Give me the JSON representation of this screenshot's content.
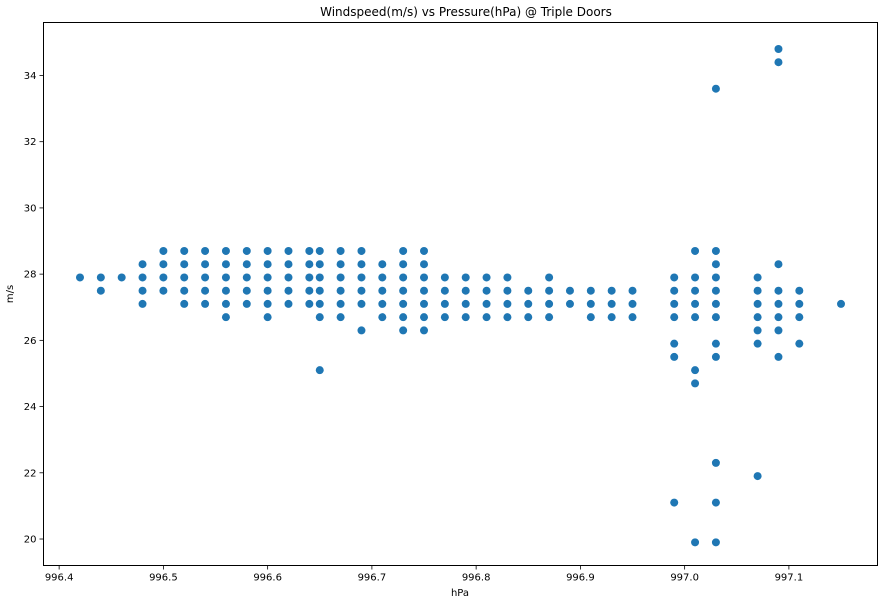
{
  "chart_data": {
    "type": "scatter",
    "title": "Windspeed(m/s) vs Pressure(hPa) @ Triple Doors",
    "xlabel": "hPa",
    "ylabel": "m/s",
    "xlim": [
      996.385,
      997.185
    ],
    "ylim": [
      19.2,
      35.6
    ],
    "xticks": [
      996.4,
      996.5,
      996.6,
      996.7,
      996.8,
      996.9,
      997.0,
      997.1
    ],
    "xtick_labels": [
      "996.4",
      "996.5",
      "996.6",
      "996.7",
      "996.8",
      "996.9",
      "997.0",
      "997.1"
    ],
    "yticks": [
      20,
      22,
      24,
      26,
      28,
      30,
      32,
      34
    ],
    "ytick_labels": [
      "20",
      "22",
      "24",
      "26",
      "28",
      "30",
      "32",
      "34"
    ],
    "grid": false,
    "marker_color": "#1f77b4",
    "columns": [
      {
        "x": 996.42,
        "y": [
          27.9
        ]
      },
      {
        "x": 996.44,
        "y": [
          27.5,
          27.9
        ]
      },
      {
        "x": 996.46,
        "y": [
          27.9
        ]
      },
      {
        "x": 996.48,
        "y": [
          27.1,
          27.5,
          27.9,
          28.3
        ]
      },
      {
        "x": 996.5,
        "y": [
          27.5,
          27.9,
          28.3,
          28.7
        ]
      },
      {
        "x": 996.52,
        "y": [
          27.1,
          27.5,
          27.9,
          28.3,
          28.7
        ]
      },
      {
        "x": 996.54,
        "y": [
          27.1,
          27.5,
          27.9,
          28.3,
          28.7
        ]
      },
      {
        "x": 996.56,
        "y": [
          26.7,
          27.1,
          27.5,
          27.9,
          28.3,
          28.7
        ]
      },
      {
        "x": 996.58,
        "y": [
          27.1,
          27.5,
          27.9,
          28.3,
          28.7
        ]
      },
      {
        "x": 996.6,
        "y": [
          26.7,
          27.1,
          27.5,
          27.9,
          28.3,
          28.7
        ]
      },
      {
        "x": 996.62,
        "y": [
          27.1,
          27.5,
          27.9,
          28.3,
          28.7
        ]
      },
      {
        "x": 996.64,
        "y": [
          27.1,
          27.5,
          27.9,
          28.3,
          28.7
        ]
      },
      {
        "x": 996.65,
        "y": [
          25.1,
          26.7,
          27.1,
          27.5,
          27.9,
          28.3,
          28.7
        ]
      },
      {
        "x": 996.67,
        "y": [
          26.7,
          27.1,
          27.5,
          27.9,
          28.3,
          28.7
        ]
      },
      {
        "x": 996.69,
        "y": [
          26.3,
          27.1,
          27.5,
          27.9,
          28.3,
          28.7
        ]
      },
      {
        "x": 996.71,
        "y": [
          26.7,
          27.1,
          27.5,
          27.9,
          28.3
        ]
      },
      {
        "x": 996.73,
        "y": [
          26.3,
          26.7,
          27.1,
          27.5,
          27.9,
          28.3,
          28.7
        ]
      },
      {
        "x": 996.75,
        "y": [
          26.3,
          26.7,
          27.1,
          27.5,
          27.9,
          28.3,
          28.7
        ]
      },
      {
        "x": 996.77,
        "y": [
          26.7,
          27.1,
          27.5,
          27.9
        ]
      },
      {
        "x": 996.79,
        "y": [
          26.7,
          27.1,
          27.5,
          27.9
        ]
      },
      {
        "x": 996.81,
        "y": [
          26.7,
          27.1,
          27.5,
          27.9
        ]
      },
      {
        "x": 996.83,
        "y": [
          26.7,
          27.1,
          27.5,
          27.9
        ]
      },
      {
        "x": 996.85,
        "y": [
          26.7,
          27.1,
          27.5
        ]
      },
      {
        "x": 996.87,
        "y": [
          26.7,
          27.1,
          27.5,
          27.9
        ]
      },
      {
        "x": 996.89,
        "y": [
          27.1,
          27.5
        ]
      },
      {
        "x": 996.91,
        "y": [
          26.7,
          27.1,
          27.5
        ]
      },
      {
        "x": 996.93,
        "y": [
          26.7,
          27.1,
          27.5
        ]
      },
      {
        "x": 996.95,
        "y": [
          26.7,
          27.1,
          27.5
        ]
      },
      {
        "x": 996.99,
        "y": [
          21.1,
          25.5,
          25.9,
          26.7,
          27.1,
          27.5,
          27.9
        ]
      },
      {
        "x": 997.01,
        "y": [
          19.9,
          24.7,
          25.1,
          26.7,
          27.1,
          27.5,
          27.9,
          28.7
        ]
      },
      {
        "x": 997.03,
        "y": [
          19.9,
          21.1,
          22.3,
          25.5,
          25.9,
          26.7,
          27.1,
          27.5,
          27.9,
          28.3,
          28.7,
          33.6
        ]
      },
      {
        "x": 997.07,
        "y": [
          21.9,
          25.9,
          26.3,
          26.7,
          27.1,
          27.5,
          27.9
        ]
      },
      {
        "x": 997.09,
        "y": [
          25.5,
          26.3,
          26.7,
          27.1,
          27.5,
          28.3,
          34.4,
          34.8
        ]
      },
      {
        "x": 997.11,
        "y": [
          25.9,
          26.7,
          27.1,
          27.5
        ]
      },
      {
        "x": 997.15,
        "y": [
          27.1
        ]
      }
    ]
  }
}
